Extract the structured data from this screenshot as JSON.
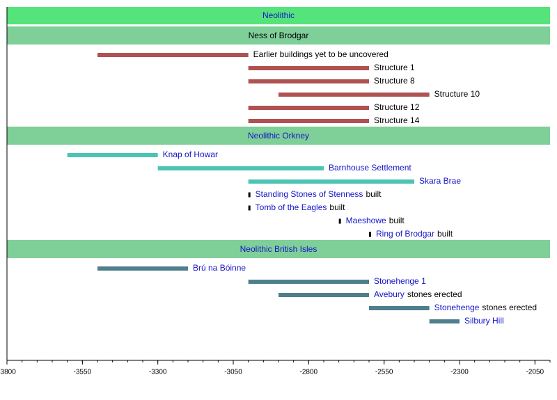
{
  "chart_data": {
    "type": "timeline",
    "title": "Neolithic",
    "title_color": "#1414c8",
    "title_background": "#55e37b",
    "xlim": [
      -3800,
      -2000
    ],
    "xticks": [
      -3800,
      -3550,
      -3300,
      -3050,
      -2800,
      -2550,
      -2300,
      -2050
    ],
    "groups": [
      {
        "name": "Ness of Brodgar",
        "name_color": "#000000",
        "label_color": "#000000",
        "background": "#7fcf98",
        "color": "#b05252",
        "items": [
          {
            "label": "Earlier buildings yet to be uncovered",
            "start": -3500,
            "end": -3000
          },
          {
            "label": "Structure 1",
            "start": -3000,
            "end": -2600
          },
          {
            "label": "Structure 8",
            "start": -3000,
            "end": -2600
          },
          {
            "label": "Structure 10",
            "start": -2900,
            "end": -2400
          },
          {
            "label": "Structure 12",
            "start": -3000,
            "end": -2600
          },
          {
            "label": "Structure 14",
            "start": -3000,
            "end": -2600
          }
        ]
      },
      {
        "name": "Neolithic Orkney",
        "name_color": "#1414c8",
        "label_color": "#1414c8",
        "background": "#7fcf98",
        "color": "#4cc4b4",
        "event_color": "#000000",
        "items": [
          {
            "label": "Knap of Howar",
            "start": -3600,
            "end": -3300
          },
          {
            "label": "Barnhouse Settlement",
            "start": -3300,
            "end": -2750
          },
          {
            "label": "Skara Brae",
            "start": -3000,
            "end": -2450
          },
          {
            "label": "Standing Stones of Stenness",
            "suffix": "built",
            "year": -3000
          },
          {
            "label": "Tomb of the Eagles",
            "suffix": "built",
            "year": -3000
          },
          {
            "label": "Maeshowe",
            "suffix": "built",
            "year": -2700
          },
          {
            "label": "Ring of Brodgar",
            "suffix": "built",
            "year": -2600
          }
        ]
      },
      {
        "name": "Neolithic British Isles",
        "name_color": "#1414c8",
        "label_color": "#1414c8",
        "background": "#7fcf98",
        "color": "#4e7f8c",
        "items": [
          {
            "label": "Brú na Bóinne",
            "start": -3500,
            "end": -3200
          },
          {
            "label": "Stonehenge 1",
            "start": -3000,
            "end": -2600
          },
          {
            "label": "Avebury",
            "suffix": "stones erected",
            "start": -2900,
            "end": -2600
          },
          {
            "label": "Stonehenge",
            "suffix": "stones erected",
            "start": -2600,
            "end": -2400
          },
          {
            "label": "Silbury Hill",
            "start": -2400,
            "end": -2300
          }
        ]
      }
    ]
  }
}
